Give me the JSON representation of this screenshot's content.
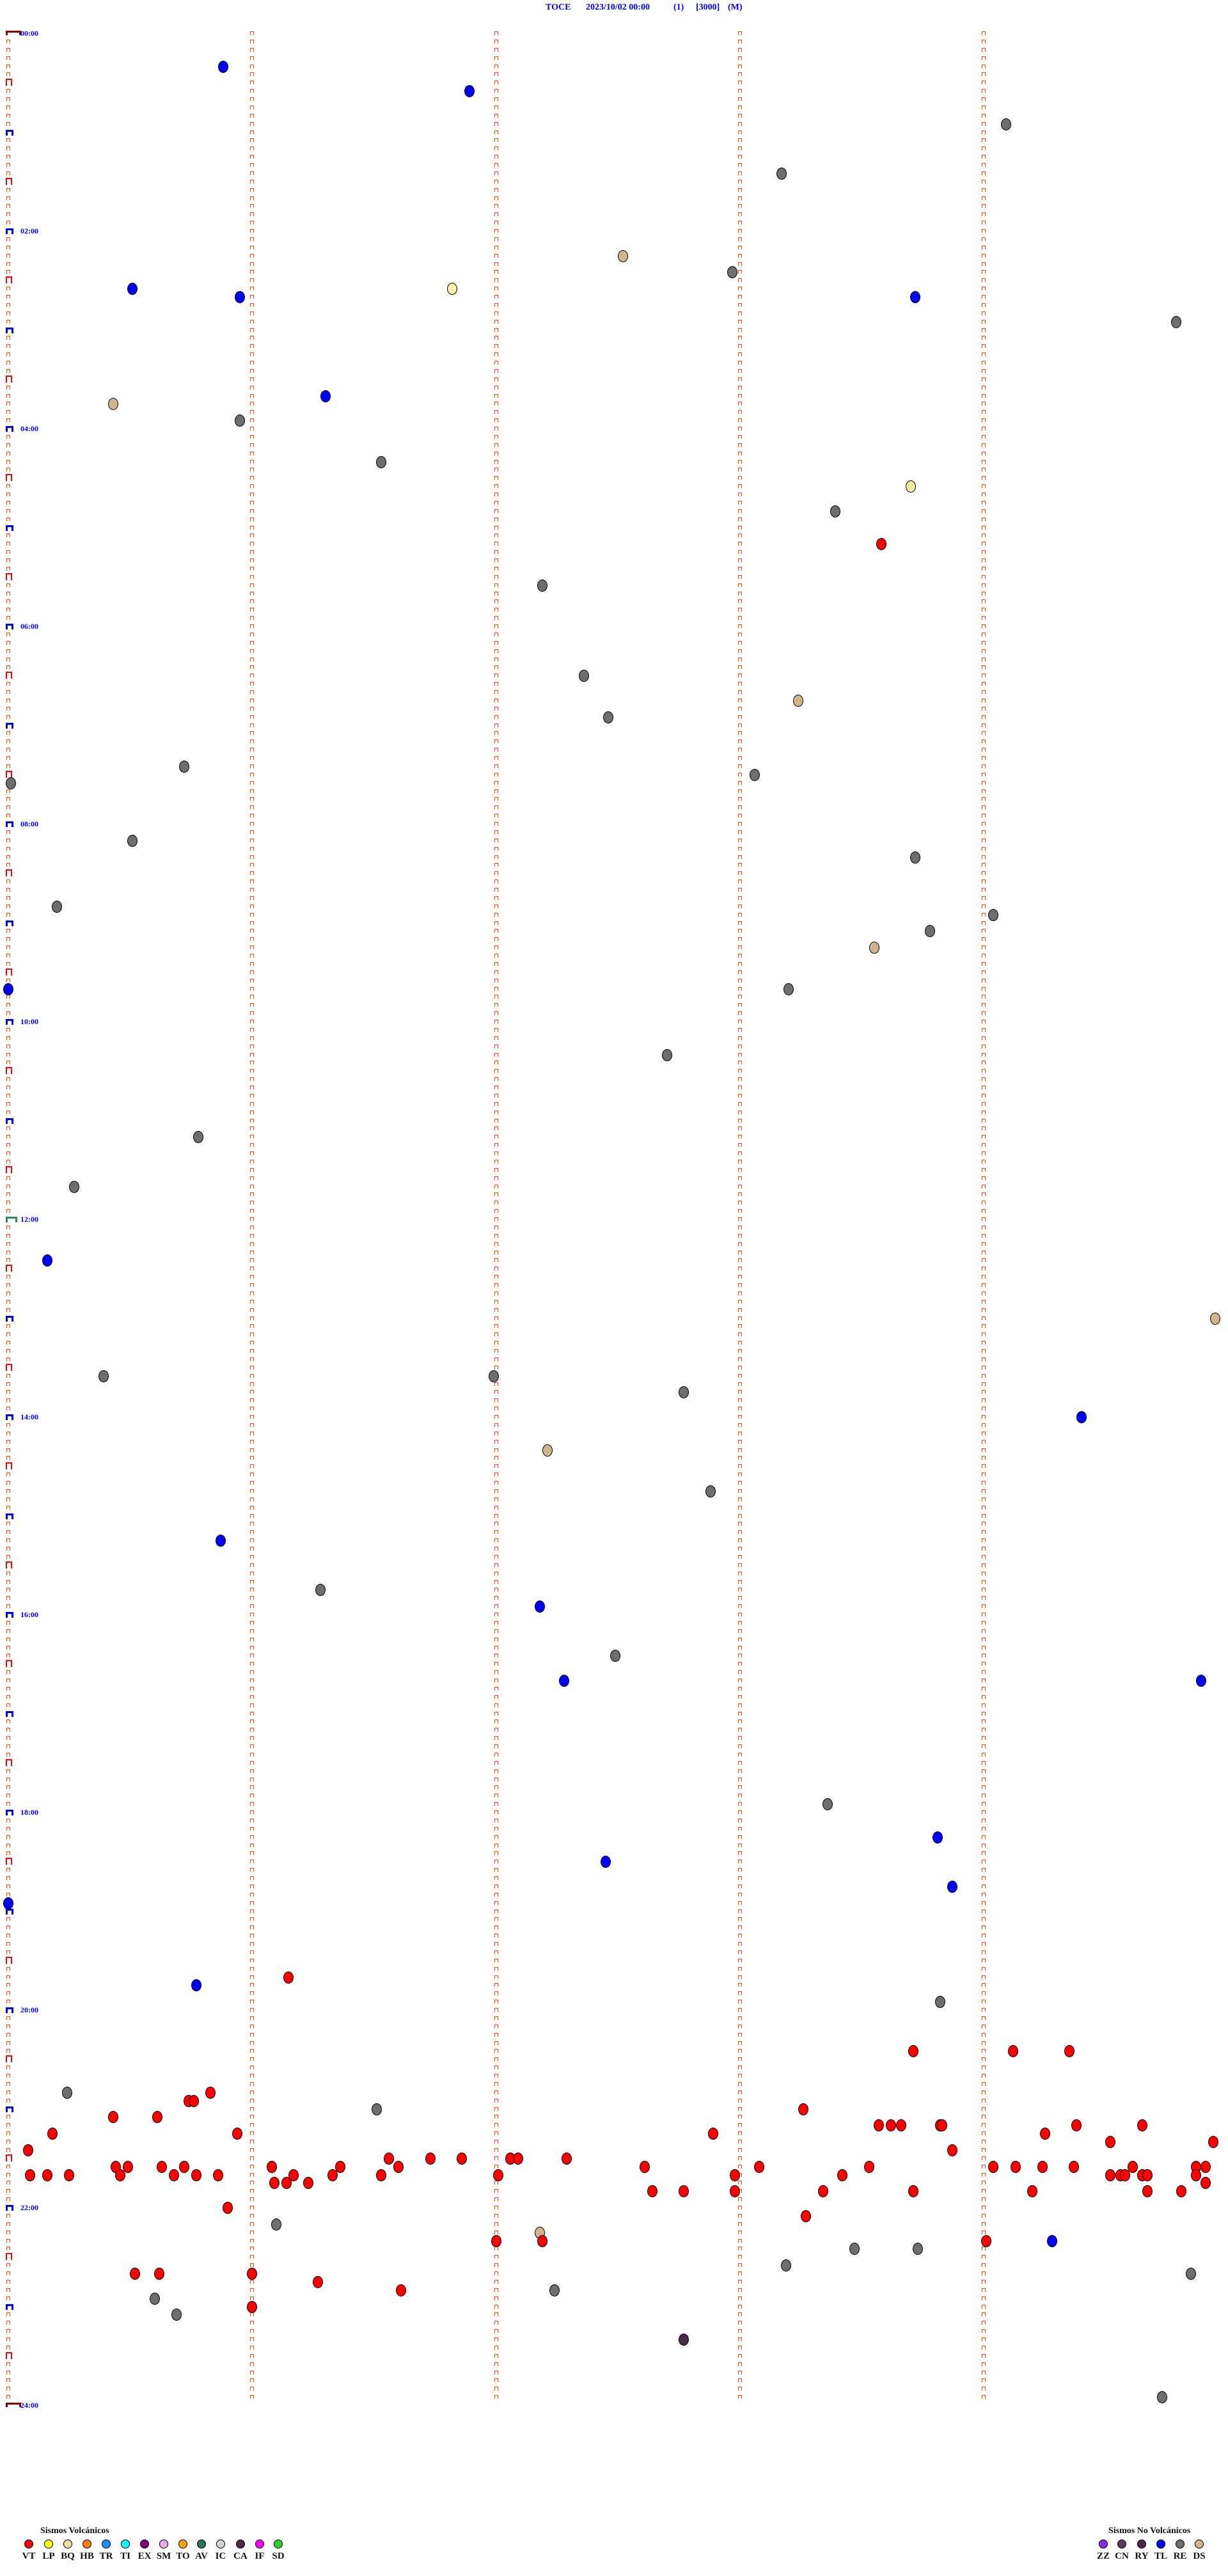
{
  "header": {
    "station": "TOCE",
    "datetime": "2023/10/02 00:00",
    "channel": "(1)",
    "scale": "[3000]",
    "mode": "(M)"
  },
  "legend_volcanic": {
    "title": "Sismos Volcánicos",
    "items": [
      {
        "code": "VT",
        "color": "#ff0000"
      },
      {
        "code": "LP",
        "color": "#ffff00"
      },
      {
        "code": "BQ",
        "color": "#f0e0a0"
      },
      {
        "code": "HB",
        "color": "#ff8000"
      },
      {
        "code": "TR",
        "color": "#1e90ff"
      },
      {
        "code": "TI",
        "color": "#00ffff"
      },
      {
        "code": "EX",
        "color": "#800080"
      },
      {
        "code": "SM",
        "color": "#f0a8e0"
      },
      {
        "code": "TO",
        "color": "#ffa500"
      },
      {
        "code": "AV",
        "color": "#1e7a5a"
      },
      {
        "code": "IC",
        "color": "#d3d3d3"
      },
      {
        "code": "CA",
        "color": "#4a2a4a"
      },
      {
        "code": "IF",
        "color": "#ff00ff"
      },
      {
        "code": "SD",
        "color": "#33cc33"
      }
    ]
  },
  "legend_nonvolcanic": {
    "title": "Sismos No Volcánicos",
    "items": [
      {
        "code": "ZZ",
        "color": "#8a2be2"
      },
      {
        "code": "CN",
        "color": "#5a3a5a"
      },
      {
        "code": "RY",
        "color": "#4a2a4a"
      },
      {
        "code": "TL",
        "color": "#0000ff"
      },
      {
        "code": "RE",
        "color": "#6e6e6e"
      },
      {
        "code": "DS",
        "color": "#d2b48c"
      }
    ]
  },
  "chart_data": {
    "type": "scatter",
    "title": "TOCE 2023/10/02 00:00 (1) [3000] (M)",
    "y_axis": {
      "ticks": [
        "00:00",
        "02:00",
        "04:00",
        "06:00",
        "08:00",
        "10:00",
        "12:00",
        "14:00",
        "16:00",
        "18:00",
        "20:00",
        "22:00",
        "24:00"
      ],
      "range": [
        "00:00",
        "24:00"
      ],
      "row_minutes": 5
    },
    "x_axis": {
      "range_minutes": [
        0,
        5
      ]
    },
    "events": [
      [
        "00:20",
        0.88,
        "TL"
      ],
      [
        "00:35",
        1.89,
        "TL"
      ],
      [
        "00:55",
        4.09,
        "RE"
      ],
      [
        "01:25",
        3.17,
        "RE"
      ],
      [
        "02:15",
        2.52,
        "DS"
      ],
      [
        "02:25",
        2.97,
        "RE"
      ],
      [
        "02:35",
        0.51,
        "TL"
      ],
      [
        "02:40",
        0.95,
        "TL"
      ],
      [
        "02:35",
        1.82,
        "LP"
      ],
      [
        "02:40",
        3.72,
        "TL"
      ],
      [
        "02:55",
        4.79,
        "RE"
      ],
      [
        "03:45",
        0.43,
        "DS"
      ],
      [
        "03:55",
        0.95,
        "RE"
      ],
      [
        "03:40",
        1.3,
        "TL"
      ],
      [
        "04:20",
        1.53,
        "RE"
      ],
      [
        "04:35",
        3.7,
        "LP"
      ],
      [
        "04:50",
        3.39,
        "RE"
      ],
      [
        "05:10",
        3.58,
        "VT"
      ],
      [
        "05:35",
        2.19,
        "RE"
      ],
      [
        "06:30",
        2.36,
        "RE"
      ],
      [
        "06:55",
        2.46,
        "RE"
      ],
      [
        "06:45",
        3.24,
        "DS"
      ],
      [
        "07:25",
        0.72,
        "RE"
      ],
      [
        "07:35",
        0.01,
        "RE"
      ],
      [
        "07:30",
        3.06,
        "RE"
      ],
      [
        "08:10",
        0.51,
        "RE"
      ],
      [
        "08:20",
        3.72,
        "RE"
      ],
      [
        "08:50",
        0.2,
        "RE"
      ],
      [
        "08:55",
        4.04,
        "RE"
      ],
      [
        "09:05",
        3.78,
        "RE"
      ],
      [
        "09:15",
        3.55,
        "DS"
      ],
      [
        "09:40",
        0.0,
        "TL"
      ],
      [
        "09:40",
        3.2,
        "RE"
      ],
      [
        "10:20",
        2.7,
        "RE"
      ],
      [
        "11:10",
        0.78,
        "RE"
      ],
      [
        "11:40",
        0.27,
        "RE"
      ],
      [
        "12:25",
        0.16,
        "TL"
      ],
      [
        "13:00",
        4.95,
        "DS"
      ],
      [
        "13:35",
        0.39,
        "RE"
      ],
      [
        "13:35",
        1.99,
        "RE"
      ],
      [
        "13:45",
        2.77,
        "RE"
      ],
      [
        "14:00",
        4.4,
        "TL"
      ],
      [
        "14:20",
        2.21,
        "DS"
      ],
      [
        "14:45",
        2.88,
        "RE"
      ],
      [
        "15:15",
        0.87,
        "TL"
      ],
      [
        "15:45",
        1.28,
        "RE"
      ],
      [
        "15:55",
        2.18,
        "TL"
      ],
      [
        "16:25",
        2.49,
        "RE"
      ],
      [
        "16:40",
        2.28,
        "TL"
      ],
      [
        "16:40",
        4.89,
        "TL"
      ],
      [
        "17:55",
        3.36,
        "RE"
      ],
      [
        "18:15",
        3.81,
        "TL"
      ],
      [
        "18:30",
        2.45,
        "TL"
      ],
      [
        "18:45",
        3.87,
        "TL"
      ],
      [
        "18:55",
        0.0,
        "TL"
      ],
      [
        "19:40",
        1.15,
        "VT"
      ],
      [
        "19:45",
        0.77,
        "TL"
      ],
      [
        "19:55",
        3.82,
        "RE"
      ],
      [
        "20:25",
        3.71,
        "VT"
      ],
      [
        "20:25",
        4.12,
        "VT"
      ],
      [
        "20:25",
        4.35,
        "VT"
      ],
      [
        "20:50",
        0.24,
        "RE"
      ],
      [
        "20:50",
        0.83,
        "VT"
      ],
      [
        "20:55",
        0.74,
        "VT"
      ],
      [
        "20:55",
        0.76,
        "VT"
      ],
      [
        "21:00",
        1.51,
        "RE"
      ],
      [
        "21:00",
        3.26,
        "VT"
      ],
      [
        "21:05",
        0.43,
        "VT"
      ],
      [
        "21:05",
        0.61,
        "VT"
      ],
      [
        "21:10",
        3.57,
        "VT"
      ],
      [
        "21:10",
        3.62,
        "VT"
      ],
      [
        "21:10",
        3.66,
        "VT"
      ],
      [
        "21:10",
        3.82,
        "VT"
      ],
      [
        "21:10",
        3.83,
        "VT"
      ],
      [
        "21:10",
        4.38,
        "VT"
      ],
      [
        "21:10",
        4.65,
        "VT"
      ],
      [
        "21:15",
        0.18,
        "VT"
      ],
      [
        "21:15",
        0.94,
        "VT"
      ],
      [
        "21:15",
        2.89,
        "VT"
      ],
      [
        "21:15",
        4.25,
        "VT"
      ],
      [
        "21:20",
        4.52,
        "VT"
      ],
      [
        "21:20",
        4.94,
        "VT"
      ],
      [
        "21:25",
        0.08,
        "VT"
      ],
      [
        "21:25",
        3.87,
        "VT"
      ],
      [
        "21:30",
        1.56,
        "VT"
      ],
      [
        "21:30",
        1.73,
        "VT"
      ],
      [
        "21:30",
        1.86,
        "VT"
      ],
      [
        "21:30",
        2.06,
        "VT"
      ],
      [
        "21:30",
        2.09,
        "VT"
      ],
      [
        "21:30",
        2.29,
        "VT"
      ],
      [
        "21:35",
        0.44,
        "VT"
      ],
      [
        "21:35",
        0.49,
        "VT"
      ],
      [
        "21:35",
        0.63,
        "VT"
      ],
      [
        "21:35",
        0.72,
        "VT"
      ],
      [
        "21:35",
        1.08,
        "VT"
      ],
      [
        "21:35",
        1.36,
        "VT"
      ],
      [
        "21:35",
        1.6,
        "VT"
      ],
      [
        "21:35",
        2.61,
        "VT"
      ],
      [
        "21:35",
        3.08,
        "VT"
      ],
      [
        "21:35",
        3.53,
        "VT"
      ],
      [
        "21:35",
        4.04,
        "VT"
      ],
      [
        "21:35",
        4.13,
        "VT"
      ],
      [
        "21:35",
        4.24,
        "VT"
      ],
      [
        "21:35",
        4.37,
        "VT"
      ],
      [
        "21:35",
        4.61,
        "VT"
      ],
      [
        "21:35",
        4.87,
        "VT"
      ],
      [
        "21:35",
        4.91,
        "VT"
      ],
      [
        "21:40",
        0.09,
        "VT"
      ],
      [
        "21:40",
        0.16,
        "VT"
      ],
      [
        "21:40",
        0.25,
        "VT"
      ],
      [
        "21:40",
        0.46,
        "VT"
      ],
      [
        "21:40",
        0.68,
        "VT"
      ],
      [
        "21:40",
        0.77,
        "VT"
      ],
      [
        "21:40",
        0.86,
        "VT"
      ],
      [
        "21:40",
        1.17,
        "VT"
      ],
      [
        "21:40",
        1.33,
        "VT"
      ],
      [
        "21:40",
        1.53,
        "VT"
      ],
      [
        "21:40",
        2.01,
        "VT"
      ],
      [
        "21:40",
        2.98,
        "VT"
      ],
      [
        "21:40",
        3.42,
        "VT"
      ],
      [
        "21:40",
        4.52,
        "VT"
      ],
      [
        "21:40",
        4.56,
        "VT"
      ],
      [
        "21:40",
        4.58,
        "VT"
      ],
      [
        "21:40",
        4.65,
        "VT"
      ],
      [
        "21:40",
        4.67,
        "VT"
      ],
      [
        "21:40",
        4.87,
        "VT"
      ],
      [
        "21:45",
        1.09,
        "VT"
      ],
      [
        "21:45",
        1.14,
        "VT"
      ],
      [
        "21:45",
        1.23,
        "VT"
      ],
      [
        "21:45",
        4.91,
        "VT"
      ],
      [
        "21:50",
        2.64,
        "VT"
      ],
      [
        "21:50",
        2.77,
        "VT"
      ],
      [
        "21:50",
        2.98,
        "VT"
      ],
      [
        "21:50",
        3.34,
        "VT"
      ],
      [
        "21:50",
        3.71,
        "VT"
      ],
      [
        "21:50",
        4.2,
        "VT"
      ],
      [
        "21:50",
        4.67,
        "VT"
      ],
      [
        "21:50",
        4.81,
        "VT"
      ],
      [
        "22:00",
        0.9,
        "VT"
      ],
      [
        "22:05",
        3.27,
        "VT"
      ],
      [
        "22:10",
        1.1,
        "RE"
      ],
      [
        "22:15",
        2.18,
        "DS"
      ],
      [
        "22:20",
        2.0,
        "VT"
      ],
      [
        "22:20",
        2.19,
        "VT"
      ],
      [
        "22:20",
        4.01,
        "VT"
      ],
      [
        "22:20",
        4.28,
        "TL"
      ],
      [
        "22:25",
        3.47,
        "RE"
      ],
      [
        "22:25",
        3.73,
        "RE"
      ],
      [
        "22:35",
        3.19,
        "RE"
      ],
      [
        "22:40",
        0.52,
        "VT"
      ],
      [
        "22:40",
        0.62,
        "VT"
      ],
      [
        "22:40",
        1.0,
        "VT"
      ],
      [
        "22:40",
        4.85,
        "RE"
      ],
      [
        "22:45",
        1.27,
        "VT"
      ],
      [
        "22:50",
        1.61,
        "VT"
      ],
      [
        "22:50",
        2.24,
        "RE"
      ],
      [
        "22:55",
        0.6,
        "RE"
      ],
      [
        "23:00",
        1.0,
        "VT"
      ],
      [
        "23:05",
        0.69,
        "RE"
      ],
      [
        "23:20",
        2.77,
        "CA"
      ],
      [
        "23:55",
        4.73,
        "RE"
      ]
    ]
  }
}
